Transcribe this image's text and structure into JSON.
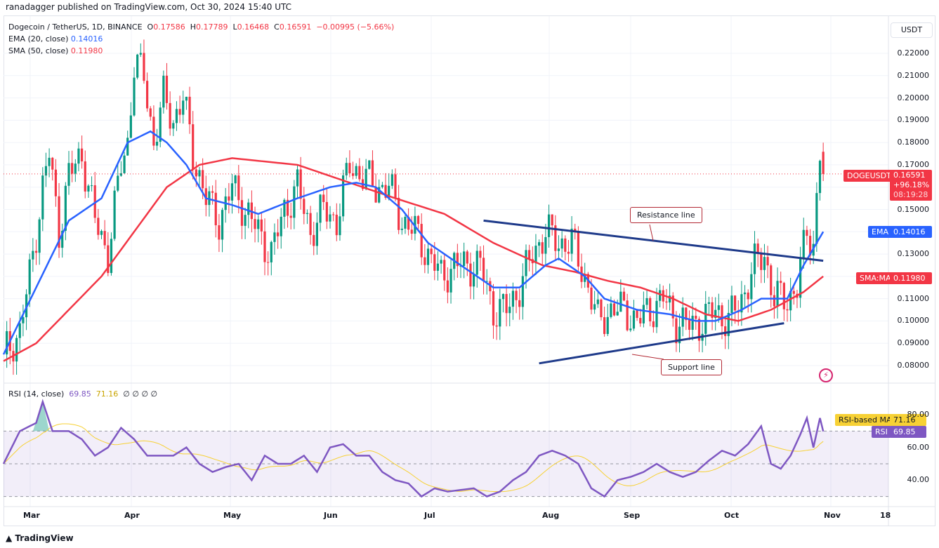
{
  "header": {
    "published": "ranadagger published on TradingView.com, Oct 30, 2024 15:40 UTC"
  },
  "legend": {
    "symbol": "Dogecoin / TetherUS, 1D, BINANCE",
    "o_label": "O",
    "o": "0.17586",
    "h_label": "H",
    "h": "0.17789",
    "l_label": "L",
    "l": "0.16468",
    "c_label": "C",
    "c": "0.16591",
    "change": "−0.00995 (−5.66%)",
    "ema_label": "EMA (20, close)",
    "ema_value": "0.14016",
    "sma_label": "SMA (50, close)",
    "sma_value": "0.11980",
    "rsi_label": "RSI (14, close)",
    "rsi_value": "69.85",
    "rsi_ma_value": "71.16",
    "rsi_extra": "∅ ∅ ∅ ∅"
  },
  "price_axis": {
    "currency": "USDT",
    "ticks": [
      "0.22000",
      "0.21000",
      "0.20000",
      "0.19000",
      "0.18000",
      "0.17000",
      "0.15000",
      "0.13000",
      "0.11000",
      "0.10000",
      "0.09000",
      "0.08000"
    ],
    "tags": {
      "symbol": "DOGEUSDT",
      "price": "0.16591",
      "change_pct": "+96.18%",
      "countdown": "08:19:28",
      "ema_tag": "EMA",
      "ema": "0.14016",
      "sma_tag": "SMA:MA",
      "sma": "0.11980"
    }
  },
  "rsi_axis": {
    "ticks": [
      "80.00",
      "60.00",
      "40.00"
    ],
    "ma_tag": "RSI-based MA",
    "ma": "71.16",
    "rsi_tag": "RSI",
    "rsi": "69.85"
  },
  "time_axis": [
    "Mar",
    "Apr",
    "May",
    "Jun",
    "Jul",
    "Aug",
    "Sep",
    "Oct",
    "Nov",
    "18"
  ],
  "annotations": {
    "resistance": "Resistance line",
    "support": "Support line"
  },
  "footer": {
    "brand": "TradingView"
  },
  "colors": {
    "up": "#089981",
    "down": "#f23645",
    "ema": "#2962ff",
    "sma": "#f23645",
    "rsi": "#7e57c2",
    "rsi_ma": "#f7d134",
    "trend": "#1e3a8a"
  },
  "chart_data": {
    "type": "candlestick",
    "ylim": [
      0.08,
      0.22
    ],
    "rsi_ylim": [
      30,
      80
    ],
    "days": 252,
    "close_anchors": [
      [
        0,
        0.085
      ],
      [
        5,
        0.095
      ],
      [
        8,
        0.12
      ],
      [
        12,
        0.16
      ],
      [
        14,
        0.175
      ],
      [
        17,
        0.14
      ],
      [
        20,
        0.165
      ],
      [
        24,
        0.175
      ],
      [
        28,
        0.145
      ],
      [
        32,
        0.13
      ],
      [
        36,
        0.17
      ],
      [
        38,
        0.18
      ],
      [
        40,
        0.215
      ],
      [
        43,
        0.21
      ],
      [
        46,
        0.18
      ],
      [
        49,
        0.2
      ],
      [
        52,
        0.19
      ],
      [
        55,
        0.2
      ],
      [
        58,
        0.175
      ],
      [
        62,
        0.155
      ],
      [
        66,
        0.145
      ],
      [
        70,
        0.16
      ],
      [
        74,
        0.15
      ],
      [
        78,
        0.14
      ],
      [
        82,
        0.13
      ],
      [
        86,
        0.15
      ],
      [
        90,
        0.16
      ],
      [
        94,
        0.14
      ],
      [
        98,
        0.15
      ],
      [
        102,
        0.145
      ],
      [
        106,
        0.17
      ],
      [
        110,
        0.165
      ],
      [
        114,
        0.16
      ],
      [
        118,
        0.16
      ],
      [
        122,
        0.145
      ],
      [
        126,
        0.14
      ],
      [
        130,
        0.13
      ],
      [
        134,
        0.12
      ],
      [
        138,
        0.125
      ],
      [
        142,
        0.125
      ],
      [
        146,
        0.125
      ],
      [
        150,
        0.105
      ],
      [
        154,
        0.105
      ],
      [
        158,
        0.115
      ],
      [
        162,
        0.13
      ],
      [
        166,
        0.14
      ],
      [
        170,
        0.135
      ],
      [
        174,
        0.135
      ],
      [
        178,
        0.12
      ],
      [
        182,
        0.1
      ],
      [
        186,
        0.105
      ],
      [
        190,
        0.105
      ],
      [
        194,
        0.1
      ],
      [
        198,
        0.105
      ],
      [
        202,
        0.11
      ],
      [
        206,
        0.1
      ],
      [
        210,
        0.098
      ],
      [
        214,
        0.1
      ],
      [
        218,
        0.105
      ],
      [
        222,
        0.1
      ],
      [
        226,
        0.11
      ],
      [
        230,
        0.125
      ],
      [
        233,
        0.13
      ],
      [
        236,
        0.11
      ],
      [
        240,
        0.11
      ],
      [
        243,
        0.115
      ],
      [
        246,
        0.14
      ],
      [
        248,
        0.135
      ],
      [
        250,
        0.175
      ],
      [
        251,
        0.166
      ]
    ],
    "ema_anchors": [
      [
        0,
        0.085
      ],
      [
        10,
        0.115
      ],
      [
        20,
        0.145
      ],
      [
        30,
        0.155
      ],
      [
        38,
        0.18
      ],
      [
        45,
        0.185
      ],
      [
        50,
        0.18
      ],
      [
        56,
        0.17
      ],
      [
        62,
        0.155
      ],
      [
        70,
        0.152
      ],
      [
        78,
        0.148
      ],
      [
        90,
        0.155
      ],
      [
        100,
        0.16
      ],
      [
        108,
        0.162
      ],
      [
        114,
        0.16
      ],
      [
        122,
        0.15
      ],
      [
        130,
        0.135
      ],
      [
        140,
        0.125
      ],
      [
        150,
        0.115
      ],
      [
        158,
        0.115
      ],
      [
        166,
        0.125
      ],
      [
        170,
        0.128
      ],
      [
        178,
        0.12
      ],
      [
        184,
        0.11
      ],
      [
        194,
        0.105
      ],
      [
        204,
        0.103
      ],
      [
        212,
        0.1
      ],
      [
        218,
        0.1
      ],
      [
        226,
        0.105
      ],
      [
        232,
        0.11
      ],
      [
        240,
        0.11
      ],
      [
        245,
        0.125
      ],
      [
        251,
        0.14
      ]
    ],
    "sma_anchors": [
      [
        0,
        0.082
      ],
      [
        10,
        0.09
      ],
      [
        20,
        0.105
      ],
      [
        30,
        0.12
      ],
      [
        40,
        0.14
      ],
      [
        50,
        0.16
      ],
      [
        60,
        0.17
      ],
      [
        70,
        0.173
      ],
      [
        90,
        0.17
      ],
      [
        110,
        0.16
      ],
      [
        120,
        0.155
      ],
      [
        135,
        0.148
      ],
      [
        150,
        0.135
      ],
      [
        165,
        0.125
      ],
      [
        175,
        0.122
      ],
      [
        185,
        0.118
      ],
      [
        195,
        0.115
      ],
      [
        205,
        0.11
      ],
      [
        215,
        0.103
      ],
      [
        225,
        0.1
      ],
      [
        235,
        0.105
      ],
      [
        245,
        0.113
      ],
      [
        251,
        0.12
      ]
    ],
    "rsi_anchors": [
      [
        0,
        50
      ],
      [
        5,
        70
      ],
      [
        10,
        75
      ],
      [
        12,
        88
      ],
      [
        15,
        70
      ],
      [
        20,
        70
      ],
      [
        24,
        65
      ],
      [
        28,
        55
      ],
      [
        32,
        60
      ],
      [
        36,
        72
      ],
      [
        40,
        65
      ],
      [
        44,
        55
      ],
      [
        48,
        55
      ],
      [
        52,
        55
      ],
      [
        56,
        60
      ],
      [
        60,
        50
      ],
      [
        64,
        45
      ],
      [
        68,
        48
      ],
      [
        72,
        50
      ],
      [
        76,
        40
      ],
      [
        80,
        55
      ],
      [
        84,
        50
      ],
      [
        88,
        50
      ],
      [
        92,
        55
      ],
      [
        96,
        45
      ],
      [
        100,
        60
      ],
      [
        104,
        62
      ],
      [
        108,
        55
      ],
      [
        112,
        55
      ],
      [
        116,
        45
      ],
      [
        120,
        40
      ],
      [
        124,
        38
      ],
      [
        128,
        30
      ],
      [
        132,
        35
      ],
      [
        136,
        33
      ],
      [
        140,
        34
      ],
      [
        144,
        35
      ],
      [
        148,
        30
      ],
      [
        152,
        33
      ],
      [
        156,
        40
      ],
      [
        160,
        45
      ],
      [
        164,
        55
      ],
      [
        168,
        58
      ],
      [
        172,
        55
      ],
      [
        176,
        50
      ],
      [
        180,
        35
      ],
      [
        184,
        30
      ],
      [
        188,
        40
      ],
      [
        192,
        42
      ],
      [
        196,
        45
      ],
      [
        200,
        50
      ],
      [
        204,
        45
      ],
      [
        208,
        42
      ],
      [
        212,
        45
      ],
      [
        216,
        52
      ],
      [
        220,
        58
      ],
      [
        224,
        55
      ],
      [
        228,
        62
      ],
      [
        232,
        73
      ],
      [
        235,
        50
      ],
      [
        238,
        47
      ],
      [
        241,
        55
      ],
      [
        244,
        68
      ],
      [
        246,
        78
      ],
      [
        248,
        60
      ],
      [
        250,
        78
      ],
      [
        251,
        69.85
      ]
    ],
    "resistance_line": [
      [
        147,
        0.145
      ],
      [
        251,
        0.127
      ]
    ],
    "support_line": [
      [
        164,
        0.081
      ],
      [
        239,
        0.099
      ]
    ]
  }
}
